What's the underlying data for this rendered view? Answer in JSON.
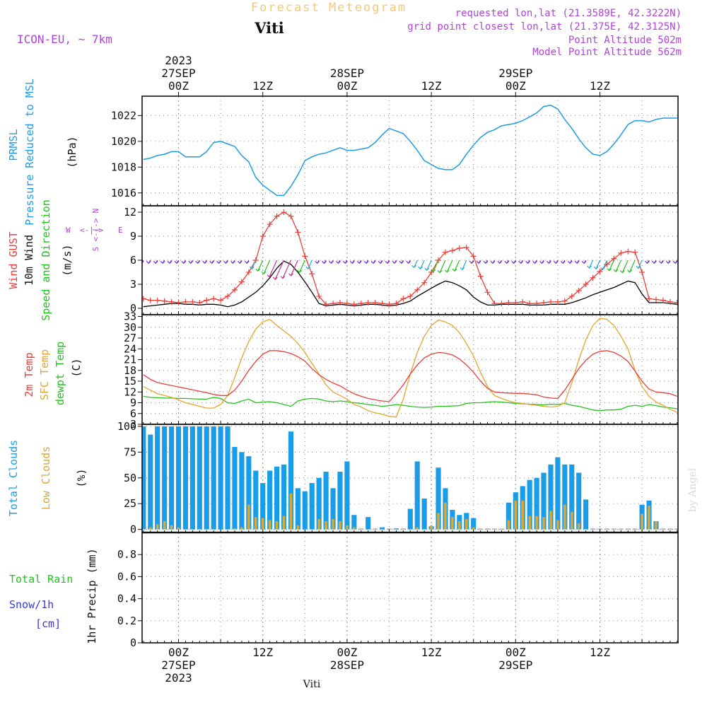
{
  "header": {
    "title": "Forecast Meteogram",
    "location": "Viti",
    "model": "ICON-EU, ~ 7km",
    "requested": "requested lon,lat (21.3589E, 42.3222N)",
    "grid_point": "grid point closest lon,lat (21.375E, 42.3125N)",
    "point_altitude": "Point Altitude 502m",
    "model_altitude": "Model Point Altitude 562m",
    "watermark": "by Angel",
    "footer_location": "Viti"
  },
  "time_axis": {
    "top_labels": [
      {
        "t": 0,
        "lines": [
          "2023",
          "27SEP",
          "00Z"
        ]
      },
      {
        "t": 12,
        "lines": [
          "12Z"
        ]
      },
      {
        "t": 24,
        "lines": [
          "28SEP",
          "00Z"
        ]
      },
      {
        "t": 36,
        "lines": [
          "12Z"
        ]
      },
      {
        "t": 48,
        "lines": [
          "29SEP",
          "00Z"
        ]
      },
      {
        "t": 60,
        "lines": [
          "12Z"
        ]
      }
    ],
    "bottom_labels": [
      {
        "t": 0,
        "lines": [
          "00Z",
          "27SEP",
          "2023"
        ]
      },
      {
        "t": 12,
        "lines": [
          "12Z"
        ]
      },
      {
        "t": 24,
        "lines": [
          "00Z",
          "28SEP"
        ]
      },
      {
        "t": 36,
        "lines": [
          "12Z"
        ]
      },
      {
        "t": 48,
        "lines": [
          "00Z",
          "29SEP"
        ]
      },
      {
        "t": 60,
        "lines": [
          "12Z"
        ]
      }
    ]
  },
  "colors": {
    "pressure": "#1e9be6",
    "gust": "#e8403a",
    "wind": "#000000",
    "temp2m": "#e8403a",
    "sfc_temp": "#e3a62e",
    "dewpt": "#22c21e",
    "total_clouds": "#1a9de8",
    "low_clouds": "#d6a93a",
    "rain": "#22c21e",
    "snow": "#3838e0",
    "meta": "#b044d8",
    "title": "#f5c878",
    "grid": "#999999"
  },
  "chart_data": [
    {
      "type": "line",
      "panel": "pressure",
      "labels": {
        "name": "PRMSL",
        "desc": "Pressure Reduced to MSL",
        "unit": "(hPa)"
      },
      "ylim": [
        1015,
        1023.5
      ],
      "yticks": [
        1016,
        1018,
        1020,
        1022
      ],
      "x": [
        -5,
        -4,
        -3,
        -2,
        -1,
        0,
        1,
        2,
        3,
        4,
        5,
        6,
        7,
        8,
        9,
        10,
        11,
        12,
        13,
        14,
        15,
        16,
        17,
        18,
        19,
        20,
        21,
        22,
        23,
        24,
        25,
        26,
        27,
        28,
        29,
        30,
        31,
        32,
        33,
        34,
        35,
        36,
        37,
        38,
        39,
        40,
        41,
        42,
        43,
        44,
        45,
        46,
        47,
        48,
        49,
        50,
        51,
        52,
        53,
        54,
        55,
        56,
        57,
        58,
        59,
        60,
        61,
        62,
        63,
        64,
        65,
        66,
        67,
        68,
        69,
        70,
        71
      ],
      "series": [
        {
          "name": "PRMSL",
          "values": [
            1018.6,
            1018.7,
            1018.9,
            1019.0,
            1019.2,
            1019.2,
            1018.8,
            1018.8,
            1018.8,
            1019.2,
            1019.9,
            1020.0,
            1019.8,
            1019.6,
            1018.9,
            1018.4,
            1017.2,
            1016.6,
            1016.2,
            1015.8,
            1015.8,
            1016.5,
            1017.4,
            1018.5,
            1018.8,
            1019.0,
            1019.1,
            1019.3,
            1019.5,
            1019.3,
            1019.3,
            1019.4,
            1019.5,
            1019.9,
            1020.5,
            1021.0,
            1020.8,
            1020.6,
            1020.0,
            1019.3,
            1018.5,
            1018.2,
            1017.9,
            1017.8,
            1017.8,
            1018.2,
            1019.0,
            1019.7,
            1020.3,
            1020.7,
            1020.9,
            1021.2,
            1021.3,
            1021.4,
            1021.6,
            1021.9,
            1022.2,
            1022.7,
            1022.8,
            1022.5,
            1021.7,
            1021.0,
            1020.2,
            1019.5,
            1019.0,
            1018.9,
            1019.2,
            1019.8,
            1020.5,
            1021.3,
            1021.6,
            1021.6,
            1021.5,
            1021.7,
            1021.8,
            1021.8,
            1021.8
          ]
        }
      ]
    },
    {
      "type": "line",
      "panel": "wind",
      "labels": {
        "gust": "Wind GUST",
        "wind": "10m Wind",
        "dir": "Speed and Direction",
        "unit": "(m/s)",
        "compass_n": "N",
        "compass_s": "S",
        "compass_w": "W",
        "compass_e": "E",
        "compass_arrows": "<-|->"
      },
      "ylim": [
        -0.8,
        12.8
      ],
      "yticks": [
        0,
        3,
        6,
        9,
        12
      ],
      "x": [
        -5,
        -4,
        -3,
        -2,
        -1,
        0,
        1,
        2,
        3,
        4,
        5,
        6,
        7,
        8,
        9,
        10,
        11,
        12,
        13,
        14,
        15,
        16,
        17,
        18,
        19,
        20,
        21,
        22,
        23,
        24,
        25,
        26,
        27,
        28,
        29,
        30,
        31,
        32,
        33,
        34,
        35,
        36,
        37,
        38,
        39,
        40,
        41,
        42,
        43,
        44,
        45,
        46,
        47,
        48,
        49,
        50,
        51,
        52,
        53,
        54,
        55,
        56,
        57,
        58,
        59,
        60,
        61,
        62,
        63,
        64,
        65,
        66,
        67,
        68,
        69,
        70,
        71
      ],
      "series": [
        {
          "name": "Wind GUST",
          "values": [
            1.2,
            1.0,
            1.0,
            0.9,
            0.8,
            0.7,
            0.8,
            0.8,
            0.7,
            1.0,
            1.2,
            1.0,
            1.5,
            2.3,
            3.3,
            4.5,
            6.0,
            9.0,
            10.5,
            11.5,
            12.0,
            11.5,
            9.5,
            6.5,
            4.3,
            1.5,
            0.5,
            0.6,
            0.7,
            0.6,
            0.5,
            0.6,
            0.7,
            0.7,
            0.6,
            0.5,
            0.6,
            1.2,
            1.5,
            2.3,
            3.2,
            4.5,
            6.0,
            7.0,
            7.2,
            7.5,
            7.6,
            6.5,
            4.0,
            2.0,
            0.6,
            0.6,
            0.7,
            0.7,
            0.8,
            0.6,
            0.6,
            0.7,
            0.8,
            0.8,
            0.9,
            1.5,
            2.2,
            3.0,
            3.8,
            4.6,
            5.5,
            6.2,
            6.9,
            7.1,
            7.0,
            4.5,
            1.2,
            1.1,
            1.0,
            0.8,
            0.7
          ]
        },
        {
          "name": "10m Wind",
          "values": [
            0.2,
            0.3,
            0.4,
            0.5,
            0.6,
            0.6,
            0.5,
            0.5,
            0.4,
            0.5,
            0.5,
            0.4,
            0.2,
            0.4,
            0.8,
            1.4,
            2.0,
            2.8,
            3.8,
            5.0,
            5.9,
            5.5,
            4.5,
            3.3,
            2.0,
            0.6,
            0.3,
            0.4,
            0.5,
            0.4,
            0.3,
            0.4,
            0.5,
            0.5,
            0.4,
            0.3,
            0.4,
            0.6,
            0.9,
            1.5,
            2.0,
            2.5,
            3.0,
            3.4,
            3.2,
            2.8,
            2.3,
            1.4,
            0.8,
            0.4,
            0.4,
            0.5,
            0.5,
            0.5,
            0.5,
            0.4,
            0.4,
            0.4,
            0.5,
            0.5,
            0.5,
            0.7,
            1.0,
            1.3,
            1.7,
            2.0,
            2.3,
            2.6,
            3.0,
            3.4,
            3.2,
            1.8,
            0.7,
            0.7,
            0.7,
            0.6,
            0.5
          ]
        }
      ]
    },
    {
      "type": "line",
      "panel": "temperature",
      "labels": {
        "t2m": "2m Temp",
        "sfc": "SFC Temp",
        "dewpt": "dewpt Temp",
        "unit": "(C)"
      },
      "ylim": [
        3,
        33.5
      ],
      "yticks": [
        3,
        6,
        9,
        12,
        15,
        18,
        21,
        24,
        27,
        30,
        33
      ],
      "x": [
        -5,
        -4,
        -3,
        -2,
        -1,
        0,
        1,
        2,
        3,
        4,
        5,
        6,
        7,
        8,
        9,
        10,
        11,
        12,
        13,
        14,
        15,
        16,
        17,
        18,
        19,
        20,
        21,
        22,
        23,
        24,
        25,
        26,
        27,
        28,
        29,
        30,
        31,
        32,
        33,
        34,
        35,
        36,
        37,
        38,
        39,
        40,
        41,
        42,
        43,
        44,
        45,
        46,
        47,
        48,
        49,
        50,
        51,
        52,
        53,
        54,
        55,
        56,
        57,
        58,
        59,
        60,
        61,
        62,
        63,
        64,
        65,
        66,
        67,
        68,
        69,
        70,
        71
      ],
      "series": [
        {
          "name": "2m Temp",
          "values": [
            16.8,
            15.5,
            14.6,
            14.2,
            13.8,
            13.4,
            13.0,
            12.6,
            12.2,
            11.8,
            11.3,
            11.0,
            11.0,
            12.5,
            15.0,
            18.0,
            20.5,
            22.5,
            23.5,
            23.5,
            23.2,
            22.7,
            21.8,
            20.6,
            18.5,
            16.8,
            15.5,
            14.5,
            13.7,
            12.5,
            11.5,
            10.8,
            10.2,
            9.8,
            9.5,
            9.3,
            11.5,
            14.0,
            17.0,
            19.5,
            21.5,
            22.5,
            23.0,
            22.8,
            22.3,
            21.2,
            19.5,
            17.5,
            15.0,
            13.0,
            12.0,
            11.8,
            11.7,
            11.6,
            11.6,
            11.4,
            11.2,
            10.6,
            10.3,
            10.2,
            12.5,
            15.5,
            18.5,
            20.8,
            22.5,
            23.3,
            23.5,
            23.0,
            22.0,
            20.5,
            17.8,
            15.0,
            12.8,
            12.0,
            11.8,
            11.5,
            10.8
          ]
        },
        {
          "name": "SFC Temp",
          "values": [
            13.5,
            12.5,
            11.5,
            11.0,
            10.5,
            9.8,
            9.0,
            8.5,
            8.0,
            7.5,
            7.5,
            8.5,
            11.0,
            16.0,
            21.5,
            26.0,
            29.5,
            31.5,
            32.2,
            30.5,
            29.0,
            27.5,
            25.5,
            23.0,
            20.0,
            17.0,
            14.0,
            12.0,
            11.0,
            10.0,
            8.5,
            7.8,
            6.8,
            6.2,
            5.8,
            5.2,
            5.0,
            10.0,
            17.0,
            23.0,
            27.5,
            30.5,
            32.0,
            31.5,
            30.5,
            28.5,
            25.5,
            22.0,
            17.5,
            13.5,
            11.0,
            10.2,
            9.5,
            9.0,
            8.8,
            8.5,
            8.3,
            8.0,
            7.8,
            8.0,
            9.0,
            14.5,
            21.0,
            26.5,
            30.5,
            32.5,
            32.2,
            30.5,
            27.5,
            24.0,
            18.0,
            13.5,
            10.8,
            9.2,
            8.3,
            7.2,
            6.3
          ]
        },
        {
          "name": "dewpt Temp",
          "values": [
            10.8,
            10.5,
            10.4,
            10.3,
            10.3,
            10.2,
            10.2,
            10.1,
            10.0,
            10.0,
            10.5,
            10.2,
            9.0,
            8.8,
            9.5,
            10.0,
            9.0,
            9.2,
            9.3,
            9.0,
            8.5,
            8.0,
            9.5,
            10.0,
            10.2,
            10.0,
            9.5,
            9.3,
            9.5,
            9.3,
            9.0,
            8.8,
            8.5,
            8.3,
            8.0,
            8.2,
            8.5,
            8.3,
            8.0,
            7.8,
            7.7,
            7.8,
            8.0,
            8.0,
            8.1,
            8.2,
            8.8,
            9.0,
            9.0,
            9.2,
            9.3,
            9.2,
            9.0,
            8.8,
            8.7,
            8.6,
            8.5,
            8.4,
            8.6,
            8.5,
            8.8,
            8.3,
            8.0,
            7.5,
            7.0,
            6.8,
            7.0,
            7.0,
            7.2,
            8.0,
            8.3,
            8.0,
            8.5,
            8.2,
            7.8,
            7.6,
            7.3
          ]
        }
      ]
    },
    {
      "type": "bar",
      "panel": "clouds",
      "labels": {
        "total": "Total Clouds",
        "low": "Low Clouds",
        "unit": "(%)"
      },
      "ylim": [
        -3,
        102
      ],
      "yticks": [
        0,
        25,
        50,
        75,
        100
      ],
      "x": [
        -5,
        -4,
        -3,
        -2,
        -1,
        0,
        1,
        2,
        3,
        4,
        5,
        6,
        7,
        8,
        9,
        10,
        11,
        12,
        13,
        14,
        15,
        16,
        17,
        18,
        19,
        20,
        21,
        22,
        23,
        24,
        25,
        26,
        27,
        28,
        29,
        30,
        31,
        32,
        33,
        34,
        35,
        36,
        37,
        38,
        39,
        40,
        41,
        42,
        43,
        44,
        45,
        46,
        47,
        48,
        49,
        50,
        51,
        52,
        53,
        54,
        55,
        56,
        57,
        58,
        59,
        60,
        61,
        62,
        63,
        64,
        65,
        66,
        67,
        68,
        69,
        70,
        71
      ],
      "series": [
        {
          "name": "Total Clouds",
          "values": [
            100,
            92,
            100,
            100,
            100,
            100,
            100,
            100,
            100,
            100,
            100,
            100,
            100,
            80,
            75,
            71,
            57,
            45,
            57,
            61,
            63,
            95,
            40,
            37,
            45,
            50,
            56,
            40,
            56,
            66,
            14,
            0,
            12,
            0,
            2,
            0,
            1,
            0,
            20,
            66,
            30,
            3,
            60,
            40,
            19,
            14,
            16,
            11,
            0,
            0,
            0,
            0,
            26,
            36,
            42,
            48,
            50,
            55,
            63,
            70,
            63,
            63,
            55,
            29,
            0,
            0,
            0,
            0,
            0,
            0,
            0,
            24,
            28,
            8,
            0,
            0,
            0
          ]
        },
        {
          "name": "Low Clouds",
          "values": [
            0,
            2,
            5,
            8,
            4,
            2,
            0,
            0,
            0,
            0,
            0,
            0,
            0,
            1,
            2,
            24,
            12,
            11,
            9,
            8,
            13,
            35,
            4,
            0,
            0,
            10,
            8,
            10,
            8,
            4,
            2,
            0,
            0,
            0,
            0,
            0,
            0,
            0,
            0,
            2,
            0,
            4,
            16,
            26,
            12,
            8,
            10,
            2,
            0,
            0,
            0,
            0,
            9,
            28,
            28,
            13,
            13,
            12,
            18,
            9,
            24,
            17,
            6,
            0,
            0,
            0,
            0,
            0,
            0,
            0,
            0,
            15,
            23,
            8,
            0,
            0,
            0
          ]
        }
      ]
    },
    {
      "type": "line",
      "panel": "precipitation",
      "labels": {
        "rain": "Total Rain",
        "snow": "Snow/1h",
        "snow_unit": "[cm]",
        "unit": "1hr Precip (mm)"
      },
      "ylim": [
        0,
        1.0
      ],
      "yticks": [
        0,
        0.2,
        0.4,
        0.6,
        0.8
      ],
      "yticklabels": [
        "0",
        "0.2",
        "0.4",
        "0.6",
        "0.8"
      ],
      "x": [],
      "series": [
        {
          "name": "Total Rain",
          "values": []
        },
        {
          "name": "Snow/1h",
          "values": []
        }
      ]
    }
  ]
}
